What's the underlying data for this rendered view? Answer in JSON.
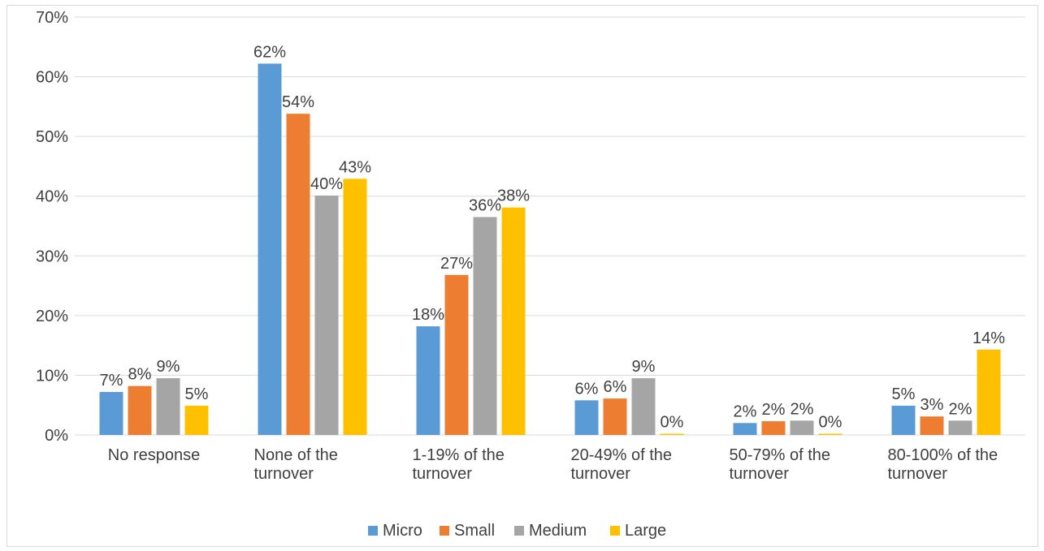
{
  "chart_data": {
    "type": "bar",
    "categories": [
      [
        "No response"
      ],
      [
        "None of the",
        "turnover"
      ],
      [
        "1-19% of the",
        "turnover"
      ],
      [
        "20-49% of the",
        "turnover"
      ],
      [
        "50-79% of the",
        "turnover"
      ],
      [
        "80-100% of the",
        "turnover"
      ]
    ],
    "series": [
      {
        "name": "Micro",
        "color": "#5b9bd5",
        "values": [
          7.2,
          62.2,
          18.2,
          5.8,
          2.0,
          4.9
        ],
        "labels": [
          "7%",
          "62%",
          "18%",
          "6%",
          "2%",
          "5%"
        ]
      },
      {
        "name": "Small",
        "color": "#ed7d31",
        "values": [
          8.2,
          53.8,
          26.8,
          6.1,
          2.3,
          3.1
        ],
        "labels": [
          "8%",
          "54%",
          "27%",
          "6%",
          "2%",
          "3%"
        ]
      },
      {
        "name": "Medium",
        "color": "#a5a5a5",
        "values": [
          9.5,
          40.1,
          36.5,
          9.5,
          2.4,
          2.4
        ],
        "labels": [
          "9%",
          "40%",
          "36%",
          "9%",
          "2%",
          "2%"
        ]
      },
      {
        "name": "Large",
        "color": "#ffc000",
        "values": [
          4.9,
          42.9,
          38.1,
          0.2,
          0.2,
          14.3
        ],
        "labels": [
          "5%",
          "43%",
          "38%",
          "0%",
          "0%",
          "14%"
        ]
      }
    ],
    "ylim": [
      0,
      70
    ],
    "yticks": [
      0,
      10,
      20,
      30,
      40,
      50,
      60,
      70
    ],
    "ytick_labels": [
      "0%",
      "10%",
      "20%",
      "30%",
      "40%",
      "50%",
      "60%",
      "70%"
    ],
    "grid": true,
    "legend_position": "bottom-center"
  }
}
